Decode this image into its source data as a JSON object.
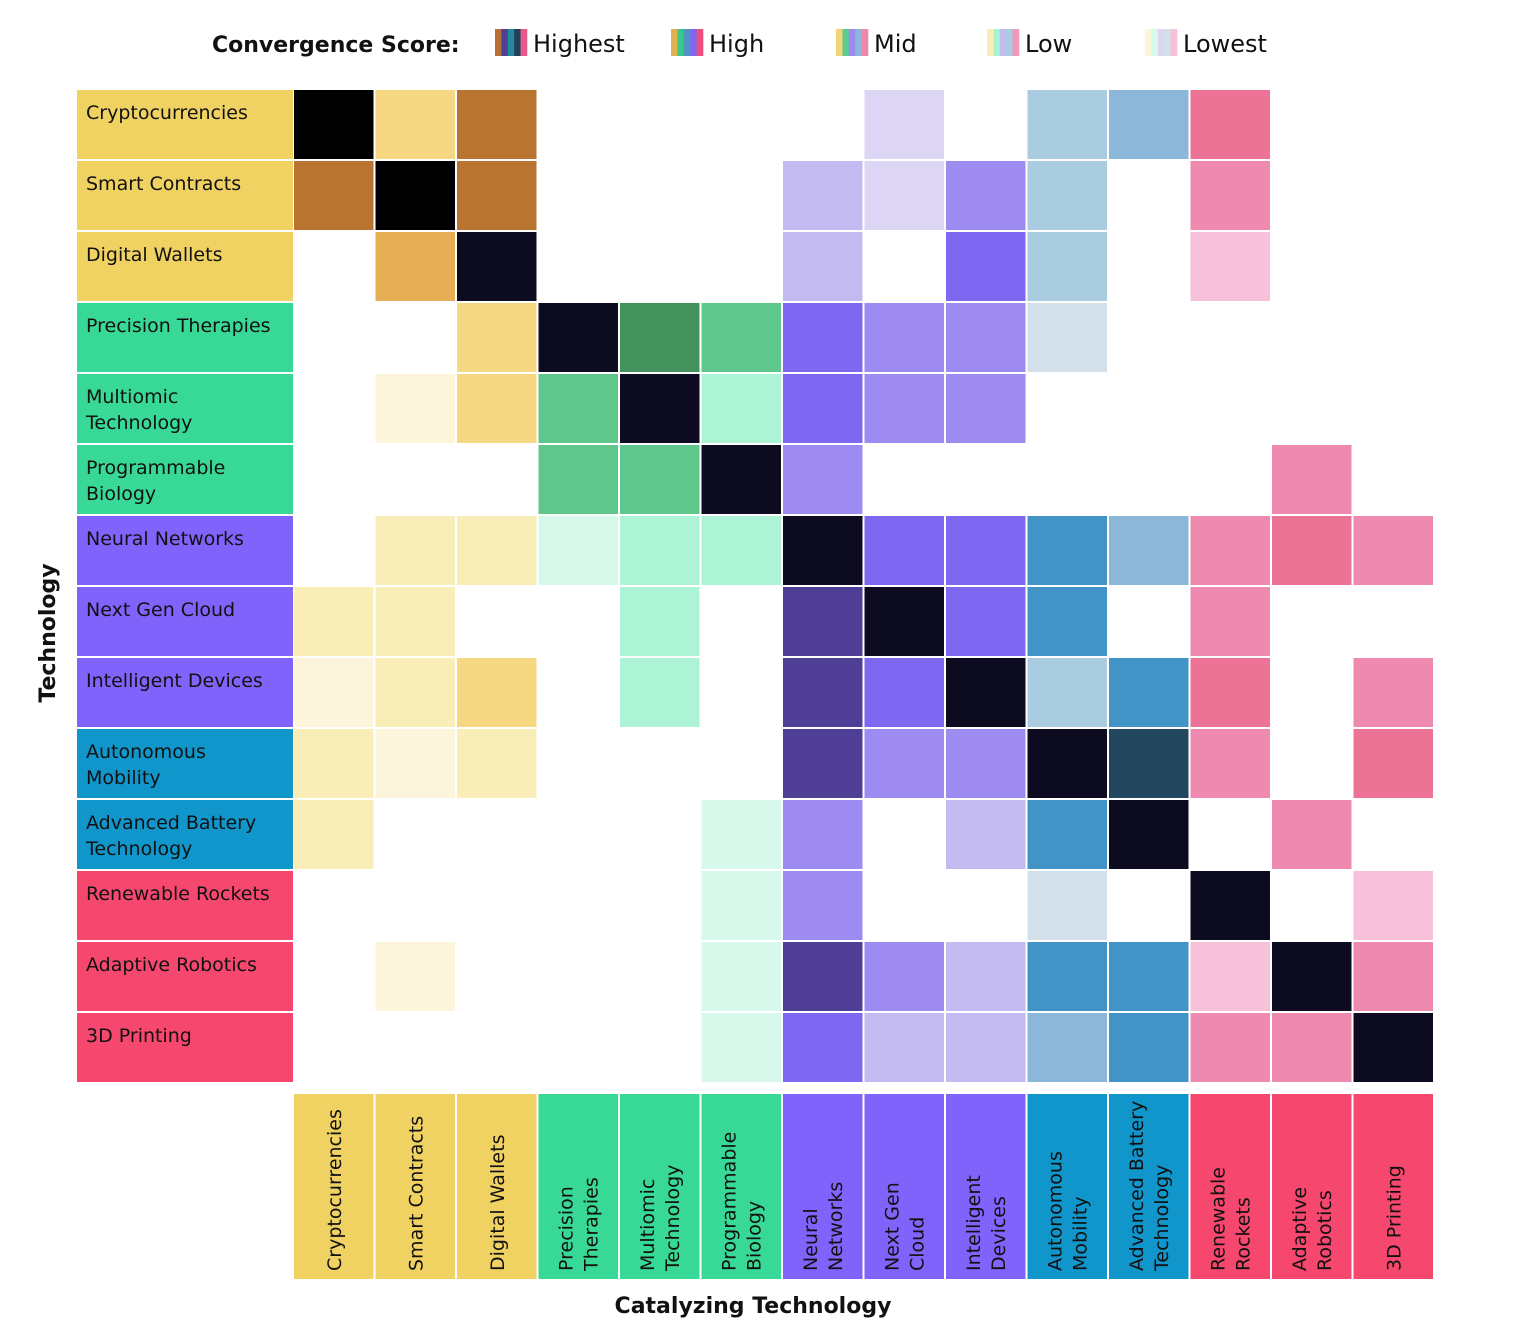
{
  "chart_data": {
    "type": "heatmap",
    "xlabel": "Catalyzing Technology",
    "ylabel": "Technology",
    "legend": {
      "title": "Convergence Score:",
      "position": "top",
      "levels": [
        {
          "label": "Highest",
          "swatch": [
            "#b97030",
            "#4f3e96",
            "#228a99",
            "#243f5e",
            "#e85a8c"
          ]
        },
        {
          "label": "High",
          "swatch": [
            "#e2b04e",
            "#3ac78a",
            "#4f93c5",
            "#7c68f2",
            "#f04d7f"
          ]
        },
        {
          "label": "Mid",
          "swatch": [
            "#f5d37d",
            "#5fcb8d",
            "#9d8bf2",
            "#8cb7d8",
            "#ee86ae"
          ]
        },
        {
          "label": "Low",
          "swatch": [
            "#faeeb8",
            "#a9f3d3",
            "#c3baf1",
            "#a9cce0",
            "#f099b8"
          ]
        },
        {
          "label": "Lowest",
          "swatch": [
            "#fcf5dc",
            "#d7f9ec",
            "#dcd6f4",
            "#d3dfe9",
            "#f7c2d9"
          ]
        }
      ]
    },
    "groups": [
      {
        "name": "crypto",
        "color": "#f0d262",
        "members": [
          0,
          1,
          2
        ]
      },
      {
        "name": "bio",
        "color": "#38d996",
        "members": [
          3,
          4,
          5
        ]
      },
      {
        "name": "ai",
        "color": "#7f63fb",
        "members": [
          6,
          7,
          8
        ]
      },
      {
        "name": "mobility",
        "color": "#1196cb",
        "members": [
          9,
          10
        ]
      },
      {
        "name": "space",
        "color": "#f6476e",
        "members": [
          11,
          12,
          13
        ]
      }
    ],
    "rows": [
      "Cryptocurrencies",
      "Smart Contracts",
      "Digital Wallets",
      "Precision Therapies",
      "Multiomic Technology",
      "Programmable Biology",
      "Neural Networks",
      "Next Gen Cloud",
      "Intelligent Devices",
      "Autonomous Mobility",
      "Advanced Battery Technology",
      "Renewable Rockets",
      "Adaptive Robotics",
      "3D Printing"
    ],
    "columns": [
      "Cryptocurrencies",
      "Smart Contracts",
      "Digital Wallets",
      "Precision Therapies",
      "Multiomic Technology",
      "Programmable Biology",
      "Neural Networks",
      "Next Gen Cloud",
      "Intelligent Devices",
      "Autonomous Mobility",
      "Advanced Battery Technology",
      "Renewable Rockets",
      "Adaptive Robotics",
      "3D Printing"
    ],
    "row_label_lines": [
      [
        "Cryptocurrencies"
      ],
      [
        "Smart Contracts"
      ],
      [
        "Digital Wallets"
      ],
      [
        "Precision Therapies"
      ],
      [
        "Multiomic",
        "Technology"
      ],
      [
        "Programmable",
        "Biology"
      ],
      [
        "Neural Networks"
      ],
      [
        "Next Gen Cloud"
      ],
      [
        "Intelligent Devices"
      ],
      [
        "Autonomous",
        "Mobility"
      ],
      [
        "Advanced Battery",
        "Technology"
      ],
      [
        "Renewable Rockets"
      ],
      [
        "Adaptive Robotics"
      ],
      [
        "3D Printing"
      ]
    ],
    "column_label_lines": [
      [
        "Cryptocurrencies"
      ],
      [
        "Smart Contracts"
      ],
      [
        "Digital Wallets"
      ],
      [
        "Precision",
        "Therapies"
      ],
      [
        "Multiomic",
        "Technology"
      ],
      [
        "Programmable",
        "Biology"
      ],
      [
        "Neural",
        "Networks"
      ],
      [
        "Next Gen",
        "Cloud"
      ],
      [
        "Intelligent",
        "Devices"
      ],
      [
        "Autonomous",
        "Mobility"
      ],
      [
        "Advanced Battery",
        "Technology"
      ],
      [
        "Renewable",
        "Rockets"
      ],
      [
        "Adaptive",
        "Robotics"
      ],
      [
        "3D Printing"
      ]
    ],
    "cells": [
      [
        "#000000",
        "#f6d882",
        "#b97432",
        null,
        null,
        null,
        null,
        "#dcd6f4",
        null,
        "#a9cce0",
        "#8cb7d8",
        "#ed7396",
        null,
        null
      ],
      [
        "#b97432",
        "#000000",
        "#b97432",
        null,
        null,
        null,
        "#c3baf1",
        "#dcd6f4",
        "#9d8bf2",
        "#a9cce0",
        null,
        "#ee8aaf",
        null,
        null
      ],
      [
        null,
        "#e6af55",
        "#0c0b20",
        null,
        null,
        null,
        "#c3baf1",
        null,
        "#7e68f2",
        "#a9cce0",
        null,
        "#f7c2d9",
        null,
        null
      ],
      [
        null,
        null,
        "#f6d882",
        "#0c0b20",
        "#43925b",
        "#5fc78b",
        "#7e68f2",
        "#9d8bf2",
        "#9d8bf2",
        "#d3dfe9",
        null,
        null,
        null,
        null
      ],
      [
        null,
        "#fcf5dc",
        "#f6d882",
        "#5fc78b",
        "#0c0b20",
        "#acf4d5",
        "#7e68f2",
        "#9d8bf2",
        "#9d8bf2",
        null,
        null,
        null,
        null,
        null
      ],
      [
        null,
        null,
        null,
        "#5fc78b",
        "#5fc78b",
        "#0c0b20",
        "#9d8bf2",
        null,
        null,
        null,
        null,
        null,
        "#ee8aaf",
        null
      ],
      [
        null,
        "#faeeb8",
        "#faeeb8",
        "#d7f9ec",
        "#acf4d5",
        "#acf4d5",
        "#0c0b20",
        "#7e68f2",
        "#7e68f2",
        "#4394c6",
        "#8cb7d8",
        "#ee8aaf",
        "#ed7396",
        "#ee8aaf"
      ],
      [
        "#faeeb8",
        "#faeeb8",
        null,
        null,
        "#acf4d5",
        null,
        "#4f3e96",
        "#0c0b20",
        "#7e68f2",
        "#4394c6",
        null,
        "#ee8aaf",
        null,
        null
      ],
      [
        "#fcf5dc",
        "#faeeb8",
        "#f6d882",
        null,
        "#acf4d5",
        null,
        "#4f3e96",
        "#7e68f2",
        "#0c0b20",
        "#a9cce0",
        "#4394c6",
        "#ed7396",
        null,
        "#ee8aaf"
      ],
      [
        "#faeeb8",
        "#fcf5dc",
        "#faeeb8",
        null,
        null,
        null,
        "#4f3e96",
        "#9d8bf2",
        "#9d8bf2",
        "#0c0b20",
        "#23475f",
        "#ee8aaf",
        null,
        "#ed7396"
      ],
      [
        "#faeeb8",
        null,
        null,
        null,
        null,
        "#d7f9ec",
        "#9d8bf2",
        null,
        "#c3baf1",
        "#4394c6",
        "#0c0b20",
        null,
        "#ee8aaf",
        null
      ],
      [
        null,
        null,
        null,
        null,
        null,
        "#d7f9ec",
        "#9d8bf2",
        null,
        null,
        "#d3dfe9",
        null,
        "#0c0b20",
        null,
        "#f7c2d9"
      ],
      [
        null,
        "#fcf5dc",
        null,
        null,
        null,
        "#d7f9ec",
        "#4f3e96",
        "#9d8bf2",
        "#c3baf1",
        "#4394c6",
        "#4394c6",
        "#f7c2d9",
        "#0c0b20",
        "#ee8aaf"
      ],
      [
        null,
        null,
        null,
        null,
        null,
        "#d7f9ec",
        "#7e68f2",
        "#c3baf1",
        "#c3baf1",
        "#8cb7d8",
        "#4394c6",
        "#ee8aaf",
        "#ee8aaf",
        "#0c0b20"
      ]
    ]
  }
}
